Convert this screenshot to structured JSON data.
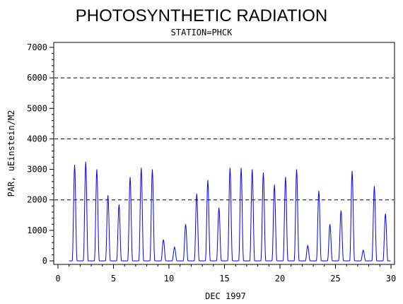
{
  "chart_data": {
    "type": "line",
    "title": "PHOTOSYNTHETIC RADIATION",
    "subtitle": "STATION=PHCK",
    "xlabel": "DEC 1997",
    "ylabel": "PAR, uEinstein/M2",
    "xlim": [
      0,
      30
    ],
    "ylim": [
      0,
      7000
    ],
    "x_ticks": [
      "0",
      "5",
      "10",
      "15",
      "20",
      "25",
      "30"
    ],
    "y_ticks": [
      "0",
      "1000",
      "2000",
      "3000",
      "4000",
      "5000",
      "6000",
      "7000"
    ],
    "reference_lines": [
      2000,
      4000,
      6000
    ],
    "grid": false,
    "series": [
      {
        "color": "#0000ff",
        "daily_peaks": [
          {
            "day": 1,
            "value": 3150
          },
          {
            "day": 2,
            "value": 3250
          },
          {
            "day": 3,
            "value": 3000
          },
          {
            "day": 4,
            "value": 2150
          },
          {
            "day": 5,
            "value": 1850
          },
          {
            "day": 6,
            "value": 2750
          },
          {
            "day": 7,
            "value": 3050
          },
          {
            "day": 8,
            "value": 3000
          },
          {
            "day": 9,
            "value": 700
          },
          {
            "day": 10,
            "value": 450
          },
          {
            "day": 11,
            "value": 1200
          },
          {
            "day": 12,
            "value": 2200
          },
          {
            "day": 13,
            "value": 2650
          },
          {
            "day": 14,
            "value": 1750
          },
          {
            "day": 15,
            "value": 3050
          },
          {
            "day": 16,
            "value": 3050
          },
          {
            "day": 17,
            "value": 3000
          },
          {
            "day": 18,
            "value": 2900
          },
          {
            "day": 19,
            "value": 2500
          },
          {
            "day": 20,
            "value": 2750
          },
          {
            "day": 21,
            "value": 3000
          },
          {
            "day": 22,
            "value": 500
          },
          {
            "day": 23,
            "value": 2300
          },
          {
            "day": 24,
            "value": 1200
          },
          {
            "day": 25,
            "value": 1650
          },
          {
            "day": 26,
            "value": 2950
          },
          {
            "day": 27,
            "value": 350
          },
          {
            "day": 28,
            "value": 2450
          },
          {
            "day": 29,
            "value": 1550
          }
        ]
      }
    ]
  }
}
